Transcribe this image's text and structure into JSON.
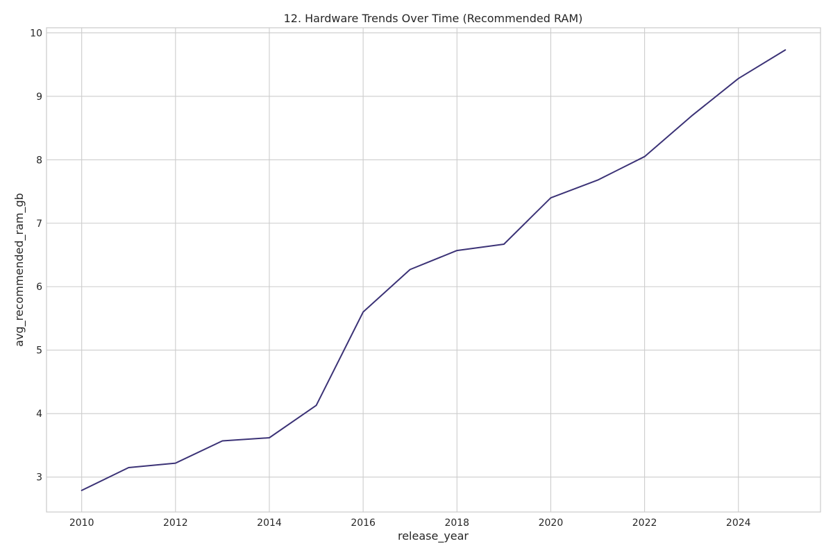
{
  "chart_data": {
    "type": "line",
    "title": "12. Hardware Trends Over Time (Recommended RAM)",
    "xlabel": "release_year",
    "ylabel": "avg_recommended_ram_gb",
    "x": [
      2010,
      2011,
      2012,
      2013,
      2014,
      2015,
      2016,
      2017,
      2018,
      2019,
      2020,
      2021,
      2022,
      2023,
      2024,
      2025
    ],
    "series": [
      {
        "values": [
          2.79,
          3.15,
          3.22,
          3.57,
          3.62,
          4.13,
          5.6,
          6.27,
          6.57,
          6.67,
          7.4,
          7.68,
          8.05,
          8.69,
          9.28,
          9.73
        ],
        "color": "#3b3276"
      }
    ],
    "xlim": [
      2009.25,
      2025.75
    ],
    "ylim": [
      2.45,
      10.08
    ],
    "xticks": [
      "2010",
      "2012",
      "2014",
      "2016",
      "2018",
      "2020",
      "2022",
      "2024"
    ],
    "yticks": [
      "3",
      "4",
      "5",
      "6",
      "7",
      "8",
      "9",
      "10"
    ],
    "grid": true,
    "legend": "none"
  }
}
